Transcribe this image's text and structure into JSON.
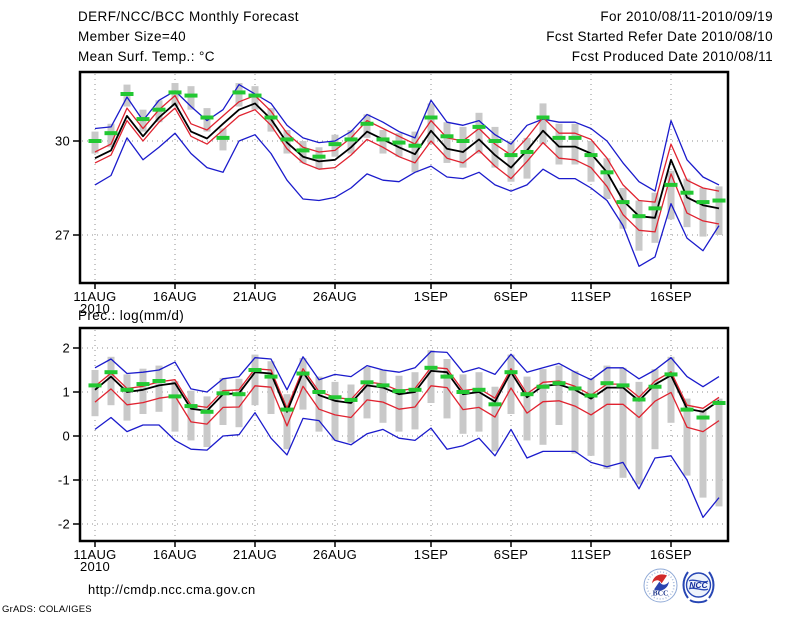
{
  "header": {
    "title": "DERF/NCC/BCC Monthly Forecast",
    "member_size": "Member Size=40",
    "var1_label": "Mean Surf. Temp.: °C",
    "for_range": "For 2010/08/11-2010/09/19",
    "fcst_start": "Fcst Started Refer Date 2010/08/10",
    "fcst_produced": "Fcst Produced Date 2010/08/11"
  },
  "footer": {
    "url": "http://cmdp.ncc.cma.gov.cn",
    "credit": "GrADS: COLA/IGES",
    "logo_bcc": "BCC",
    "logo_ncc": "NCC"
  },
  "colors": {
    "ensemble_mean": "#000000",
    "spread": "#e02330",
    "envelope": "#1b1bcc",
    "observation": "#22c832",
    "climatology_bar": "#c9c9c9",
    "grid": "#909090",
    "frame": "#000000"
  },
  "chart_data": [
    {
      "type": "line",
      "name": "temperature",
      "title": "Mean Surf. Temp.: °C",
      "ylabel": "°C",
      "year": "2010",
      "x_ticks": [
        "11AUG",
        "16AUG",
        "21AUG",
        "26AUG",
        "1SEP",
        "6SEP",
        "11SEP",
        "16SEP"
      ],
      "dates": [
        "11AUG",
        "12AUG",
        "13AUG",
        "14AUG",
        "15AUG",
        "16AUG",
        "17AUG",
        "18AUG",
        "19AUG",
        "20AUG",
        "21AUG",
        "22AUG",
        "23AUG",
        "24AUG",
        "25AUG",
        "26AUG",
        "27AUG",
        "28AUG",
        "29AUG",
        "30AUG",
        "31AUG",
        "1SEP",
        "2SEP",
        "3SEP",
        "4SEP",
        "5SEP",
        "6SEP",
        "7SEP",
        "8SEP",
        "9SEP",
        "10SEP",
        "11SEP",
        "12SEP",
        "13SEP",
        "14SEP",
        "15SEP",
        "16SEP",
        "17SEP",
        "18SEP",
        "19SEP"
      ],
      "y_ticks": [
        30,
        27
      ],
      "ylim": [
        25.5,
        32.2
      ],
      "grid": "dotted",
      "series": [
        {
          "name": "member-max",
          "color": "#1b1bcc",
          "values": [
            30.4,
            30.45,
            31.4,
            30.65,
            31.3,
            31.6,
            31.1,
            30.65,
            31.0,
            31.8,
            31.5,
            31.2,
            30.5,
            30.1,
            29.95,
            30.0,
            30.3,
            30.85,
            30.6,
            30.3,
            30.1,
            31.3,
            30.6,
            30.5,
            30.65,
            30.2,
            29.9,
            30.5,
            30.7,
            30.6,
            30.6,
            30.4,
            30.0,
            29.3,
            28.7,
            28.4,
            30.65,
            29.4,
            28.85,
            28.6
          ]
        },
        {
          "name": "member-min",
          "color": "#1b1bcc",
          "values": [
            28.6,
            28.9,
            30.1,
            29.4,
            29.8,
            30.25,
            29.6,
            29.15,
            29.0,
            30.0,
            30.2,
            29.6,
            28.75,
            28.15,
            28.1,
            28.2,
            28.5,
            28.95,
            28.75,
            28.7,
            29.0,
            29.2,
            28.85,
            28.8,
            29.0,
            28.6,
            28.4,
            28.6,
            29.1,
            28.8,
            28.8,
            28.5,
            28.1,
            27.3,
            26.0,
            26.3,
            28.0,
            26.9,
            26.5,
            27.3
          ]
        },
        {
          "name": "spread-upper",
          "color": "#e02330",
          "values": [
            29.65,
            29.9,
            31.05,
            30.4,
            31.0,
            31.45,
            30.55,
            30.35,
            30.8,
            31.25,
            31.45,
            30.95,
            30.25,
            29.8,
            29.65,
            29.7,
            30.1,
            30.65,
            30.4,
            30.15,
            29.9,
            30.65,
            30.1,
            30.0,
            30.4,
            29.9,
            29.55,
            30.1,
            30.75,
            30.25,
            30.25,
            30.05,
            29.45,
            28.6,
            28.1,
            28.05,
            29.9,
            28.75,
            28.5,
            28.4
          ]
        },
        {
          "name": "spread-lower",
          "color": "#e02330",
          "values": [
            29.3,
            29.55,
            30.65,
            30.0,
            30.6,
            31.05,
            30.15,
            29.9,
            30.35,
            30.8,
            31.0,
            30.5,
            29.75,
            29.3,
            29.1,
            29.15,
            29.55,
            30.05,
            29.8,
            29.5,
            29.3,
            30.0,
            29.45,
            29.3,
            29.7,
            29.2,
            28.8,
            29.35,
            29.95,
            29.45,
            29.4,
            29.15,
            28.55,
            27.65,
            27.15,
            27.1,
            28.95,
            27.7,
            27.45,
            27.35
          ]
        },
        {
          "name": "ensemble-mean",
          "color": "#000000",
          "values": [
            29.45,
            29.7,
            30.8,
            30.15,
            30.75,
            31.2,
            30.3,
            30.08,
            30.55,
            31.0,
            31.2,
            30.7,
            29.95,
            29.5,
            29.35,
            29.4,
            29.8,
            30.3,
            30.05,
            29.8,
            29.58,
            30.33,
            29.75,
            29.65,
            30.05,
            29.55,
            29.15,
            29.7,
            30.33,
            29.82,
            29.82,
            29.6,
            29.0,
            28.1,
            27.6,
            27.55,
            29.4,
            28.2,
            27.95,
            27.85
          ]
        }
      ],
      "climatology_dash": [
        30.0,
        30.25,
        31.5,
        30.7,
        31.0,
        31.55,
        31.45,
        30.75,
        30.1,
        31.55,
        31.45,
        30.75,
        30.05,
        29.7,
        29.5,
        29.9,
        30.05,
        30.55,
        30.05,
        29.95,
        29.85,
        30.75,
        30.15,
        30.0,
        30.45,
        30.0,
        29.55,
        29.65,
        30.75,
        30.1,
        30.1,
        29.55,
        29.0,
        28.05,
        27.6,
        27.85,
        28.6,
        28.35,
        28.05,
        28.1
      ],
      "range_bar_hi": [
        30.3,
        30.55,
        31.8,
        31.0,
        31.3,
        31.85,
        31.75,
        31.05,
        30.4,
        31.85,
        31.75,
        31.05,
        30.35,
        30.0,
        29.8,
        30.2,
        30.35,
        30.85,
        30.35,
        30.25,
        30.3,
        31.2,
        30.6,
        30.45,
        30.9,
        30.45,
        30.0,
        30.1,
        31.2,
        30.55,
        30.55,
        30.0,
        29.45,
        28.5,
        28.1,
        28.35,
        29.05,
        28.8,
        28.5,
        28.55
      ],
      "range_bar_lo": [
        29.6,
        29.8,
        31.1,
        30.3,
        30.6,
        31.1,
        31.0,
        30.3,
        29.7,
        31.1,
        31.0,
        30.3,
        29.6,
        29.3,
        29.1,
        29.5,
        29.6,
        30.1,
        29.6,
        29.5,
        29.0,
        29.9,
        29.3,
        29.15,
        29.6,
        29.15,
        28.7,
        28.8,
        29.9,
        29.25,
        29.25,
        28.7,
        28.15,
        27.2,
        26.5,
        26.75,
        27.5,
        27.25,
        26.95,
        27.0
      ]
    },
    {
      "type": "line",
      "name": "precipitation",
      "title": "Prec.: log(mm/d)",
      "ylabel": "log(mm/d)",
      "year": "2010",
      "x_ticks": [
        "11AUG",
        "16AUG",
        "21AUG",
        "26AUG",
        "1SEP",
        "6SEP",
        "11SEP",
        "16SEP"
      ],
      "y_ticks": [
        2,
        1,
        0,
        -1,
        -2
      ],
      "ylim": [
        -2.4,
        2.45
      ],
      "grid": "dotted",
      "series": [
        {
          "name": "member-max",
          "color": "#1b1bcc",
          "values": [
            1.55,
            1.75,
            1.42,
            1.45,
            1.5,
            1.68,
            1.07,
            1.0,
            1.3,
            1.35,
            1.78,
            1.75,
            1.05,
            1.8,
            1.28,
            1.4,
            1.35,
            1.6,
            1.5,
            1.45,
            1.55,
            1.92,
            1.9,
            1.45,
            1.55,
            1.4,
            1.86,
            1.45,
            1.55,
            1.65,
            1.45,
            1.28,
            1.55,
            1.55,
            1.3,
            1.5,
            1.78,
            1.35,
            1.12,
            1.35
          ]
        },
        {
          "name": "member-min",
          "color": "#1b1bcc",
          "values": [
            0.15,
            0.42,
            0.1,
            0.25,
            0.25,
            -0.1,
            -0.3,
            -0.32,
            0.0,
            0.03,
            0.53,
            -0.05,
            -0.43,
            0.4,
            0.35,
            -0.1,
            -0.2,
            0.05,
            0.15,
            -0.05,
            -0.1,
            0.18,
            -0.3,
            -0.22,
            -0.05,
            -0.45,
            0.15,
            -0.5,
            -0.35,
            -0.35,
            -0.35,
            -0.6,
            -0.7,
            -0.6,
            -1.2,
            -0.5,
            -0.45,
            -1.0,
            -1.85,
            -1.4
          ]
        },
        {
          "name": "spread-upper",
          "color": "#e02330",
          "values": [
            1.13,
            1.43,
            1.08,
            1.13,
            1.23,
            1.28,
            0.7,
            0.65,
            1.03,
            1.05,
            1.53,
            1.5,
            0.63,
            1.53,
            1.01,
            0.88,
            0.83,
            1.23,
            1.18,
            1.03,
            1.08,
            1.56,
            1.53,
            1.03,
            1.08,
            0.86,
            1.53,
            0.96,
            1.22,
            1.25,
            1.13,
            0.93,
            1.18,
            1.18,
            0.88,
            1.25,
            1.46,
            0.7,
            0.63,
            0.88
          ]
        },
        {
          "name": "spread-lower",
          "color": "#e02330",
          "values": [
            0.77,
            1.07,
            0.71,
            0.76,
            0.86,
            0.91,
            0.32,
            0.27,
            0.65,
            0.66,
            1.14,
            1.11,
            0.23,
            1.13,
            0.61,
            0.48,
            0.42,
            0.82,
            0.77,
            0.61,
            0.66,
            1.14,
            1.1,
            0.6,
            0.65,
            0.43,
            1.09,
            0.52,
            0.78,
            0.8,
            0.68,
            0.48,
            0.72,
            0.72,
            0.42,
            0.79,
            0.99,
            0.2,
            0.1,
            0.35
          ]
        },
        {
          "name": "ensemble-mean",
          "color": "#000000",
          "values": [
            1.05,
            1.35,
            1.0,
            1.05,
            1.15,
            1.2,
            0.62,
            0.57,
            0.95,
            0.97,
            1.45,
            1.42,
            0.55,
            1.45,
            0.93,
            0.8,
            0.75,
            1.15,
            1.1,
            0.95,
            1.0,
            1.48,
            1.45,
            0.95,
            1.0,
            0.78,
            1.45,
            0.88,
            1.14,
            1.17,
            1.05,
            0.85,
            1.1,
            1.1,
            0.8,
            1.17,
            1.38,
            0.62,
            0.55,
            0.8
          ]
        }
      ],
      "climatology_dash": [
        1.15,
        1.45,
        1.05,
        1.18,
        1.25,
        0.9,
        0.68,
        0.55,
        0.97,
        0.95,
        1.5,
        1.35,
        0.6,
        1.42,
        1.0,
        0.88,
        0.82,
        1.22,
        1.15,
        1.02,
        1.05,
        1.55,
        1.35,
        1.0,
        1.05,
        0.72,
        1.45,
        0.95,
        1.12,
        1.2,
        1.08,
        0.92,
        1.2,
        1.15,
        0.83,
        1.12,
        1.4,
        0.6,
        0.42,
        0.75
      ],
      "range_bar_hi": [
        1.5,
        1.8,
        1.4,
        1.53,
        1.6,
        1.25,
        1.03,
        0.9,
        1.32,
        1.3,
        1.85,
        1.7,
        0.95,
        1.77,
        1.35,
        1.23,
        1.17,
        1.57,
        1.5,
        1.37,
        1.45,
        1.95,
        1.75,
        1.4,
        1.45,
        1.12,
        1.85,
        1.35,
        1.52,
        1.6,
        1.48,
        1.32,
        1.6,
        1.55,
        1.23,
        1.52,
        1.8,
        0.85,
        0.6,
        0.85
      ],
      "range_bar_lo": [
        0.45,
        0.7,
        0.35,
        0.5,
        0.55,
        0.1,
        -0.1,
        -0.25,
        0.25,
        0.2,
        0.7,
        0.5,
        -0.3,
        0.6,
        0.1,
        -0.1,
        -0.15,
        0.4,
        0.3,
        0.1,
        0.15,
        0.75,
        0.4,
        0.05,
        0.1,
        -0.35,
        0.5,
        -0.1,
        -0.2,
        0.25,
        -0.4,
        -0.45,
        -0.75,
        -0.95,
        -1.1,
        -0.3,
        0.3,
        -0.9,
        -1.4,
        -1.6
      ]
    }
  ]
}
